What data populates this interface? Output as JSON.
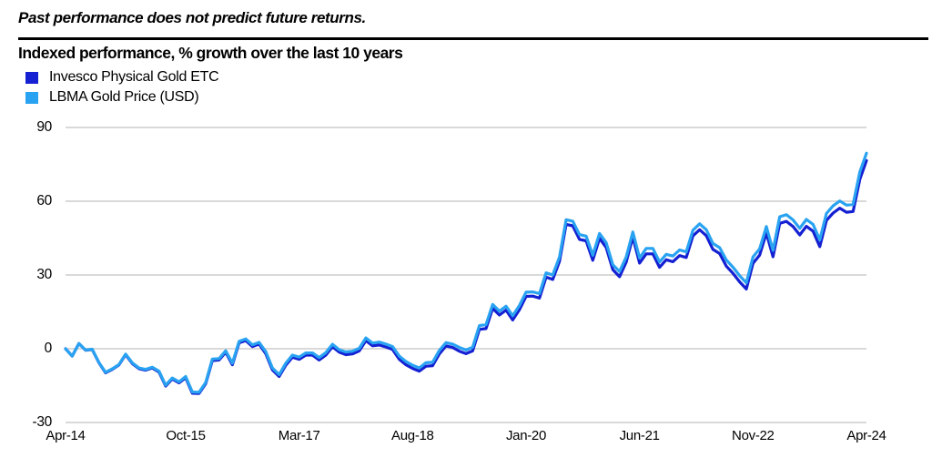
{
  "page": {
    "disclaimer": "Past performance does not predict future returns.",
    "title": "Indexed performance, % growth over the last 10 years"
  },
  "colors": {
    "invesco_line": "#1420D2",
    "lbma_line": "#29A3F1",
    "gridline": "#D9D9D9",
    "rule": "#000000"
  },
  "chart_data": {
    "type": "line",
    "title": "Indexed performance, % growth over the last 10 years",
    "x_unit": "month",
    "x_start_label": "Apr-14",
    "x_end_label": "Apr-24",
    "x_tick_labels": [
      "Apr-14",
      "Oct-15",
      "Mar-17",
      "Aug-18",
      "Jan-20",
      "Jun-21",
      "Nov-22",
      "Apr-24"
    ],
    "x_tick_month_index": [
      0,
      18,
      35,
      52,
      69,
      86,
      103,
      120
    ],
    "y_ticks": [
      90,
      60,
      30,
      0,
      -30
    ],
    "ylim": [
      -30,
      90
    ],
    "grid": true,
    "legend_position": "top-left",
    "series": [
      {
        "name": "Invesco Physical Gold ETC",
        "color": "#1420D2",
        "values": [
          0,
          -3,
          2.1,
          -0.6,
          -0.3,
          -5.7,
          -9.8,
          -8.4,
          -6.6,
          -2.4,
          -6,
          -8.1,
          -8.7,
          -7.8,
          -9.5,
          -15.2,
          -12.3,
          -13.9,
          -11.8,
          -18.1,
          -18.2,
          -14.2,
          -4.8,
          -4.6,
          -1.4,
          -6.5,
          2.4,
          3.3,
          0.9,
          1.9,
          -2,
          -8.6,
          -11.3,
          -6.7,
          -3.5,
          -4.3,
          -2.6,
          -2.6,
          -4.6,
          -2.6,
          0.8,
          -1.4,
          -2.4,
          -2.1,
          -0.9,
          3.3,
          1.2,
          1.5,
          0.7,
          -0.3,
          -4.3,
          -6.5,
          -8,
          -9.1,
          -7.1,
          -6.9,
          -2.1,
          1.1,
          0.5,
          -1,
          -2,
          -0.9,
          7.9,
          8.2,
          16.4,
          13.7,
          15.7,
          11.7,
          15.9,
          21.3,
          21.4,
          20.6,
          29.1,
          28.2,
          35.5,
          50.6,
          50,
          44.5,
          43.9,
          36,
          44.9,
          41.2,
          32.2,
          29.3,
          35.2,
          45.4,
          34.8,
          38.6,
          38.6,
          33.1,
          36.2,
          35.4,
          37.9,
          37.1,
          45.9,
          48.4,
          46,
          40.4,
          38.7,
          33.6,
          30.7,
          27.2,
          24.3,
          34.7,
          38.1,
          47.1,
          37.4,
          51,
          51.8,
          49.7,
          46.3,
          49.8,
          47.8,
          41.5,
          52.2,
          55.2,
          57.2,
          55.5,
          55.8,
          68.9,
          76.5
        ]
      },
      {
        "name": "LBMA Gold Price (USD)",
        "color": "#29A3F1",
        "values": [
          0,
          -3,
          2.1,
          -0.5,
          -0.2,
          -5.6,
          -9.6,
          -8.2,
          -6.4,
          -2.2,
          -5.7,
          -7.8,
          -8.4,
          -7.5,
          -9.1,
          -14.8,
          -11.9,
          -13.5,
          -11.3,
          -17.6,
          -17.7,
          -13.7,
          -4.2,
          -4,
          -0.8,
          -5.9,
          3,
          4,
          1.6,
          2.6,
          -1.2,
          -7.8,
          -10.5,
          -5.9,
          -2.6,
          -3.4,
          -1.7,
          -1.7,
          -3.6,
          -1.6,
          1.8,
          -0.4,
          -1.3,
          -1,
          0.2,
          4.4,
          2.3,
          2.7,
          1.9,
          0.9,
          -3,
          -5.2,
          -6.7,
          -7.8,
          -5.7,
          -5.5,
          -0.7,
          2.5,
          1.9,
          0.5,
          -0.5,
          0.6,
          9.4,
          9.8,
          18,
          15.3,
          17.3,
          13.4,
          17.6,
          23,
          23.1,
          22.4,
          30.9,
          30,
          37.3,
          52.5,
          51.9,
          46.4,
          45.8,
          38,
          46.9,
          43.2,
          34.2,
          31.4,
          37.3,
          47.5,
          36.9,
          40.8,
          40.8,
          35.3,
          38.4,
          37.7,
          40.2,
          39.4,
          48.2,
          50.8,
          48.4,
          42.8,
          41.1,
          36.1,
          33.2,
          29.7,
          26.8,
          37.3,
          40.7,
          49.7,
          40,
          53.7,
          54.5,
          52.4,
          49,
          52.6,
          50.6,
          44.3,
          55,
          58.1,
          60.1,
          58.4,
          58.7,
          71.9,
          79.5
        ]
      }
    ]
  }
}
